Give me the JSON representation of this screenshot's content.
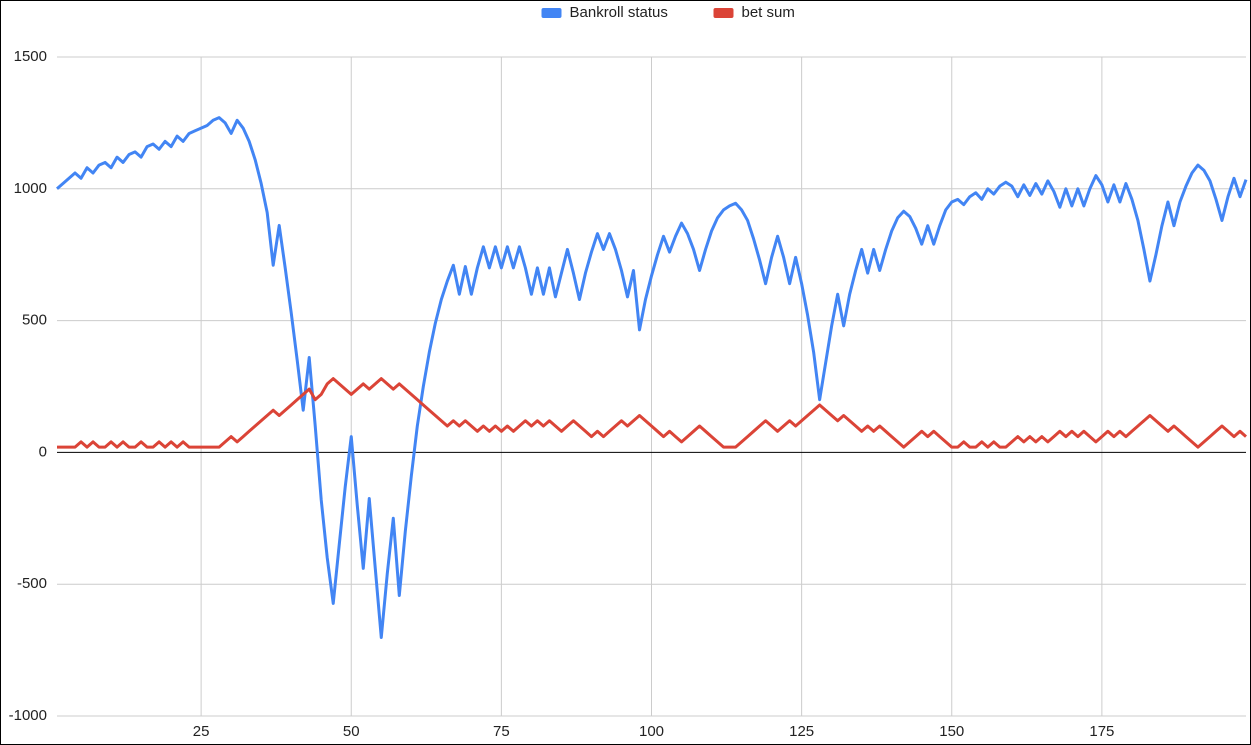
{
  "chart_data": {
    "type": "line",
    "x": [
      1,
      2,
      3,
      4,
      5,
      6,
      7,
      8,
      9,
      10,
      11,
      12,
      13,
      14,
      15,
      16,
      17,
      18,
      19,
      20,
      21,
      22,
      23,
      24,
      25,
      26,
      27,
      28,
      29,
      30,
      31,
      32,
      33,
      34,
      35,
      36,
      37,
      38,
      39,
      40,
      41,
      42,
      43,
      44,
      45,
      46,
      47,
      48,
      49,
      50,
      51,
      52,
      53,
      54,
      55,
      56,
      57,
      58,
      59,
      60,
      61,
      62,
      63,
      64,
      65,
      66,
      67,
      68,
      69,
      70,
      71,
      72,
      73,
      74,
      75,
      76,
      77,
      78,
      79,
      80,
      81,
      82,
      83,
      84,
      85,
      86,
      87,
      88,
      89,
      90,
      91,
      92,
      93,
      94,
      95,
      96,
      97,
      98,
      99,
      100,
      101,
      102,
      103,
      104,
      105,
      106,
      107,
      108,
      109,
      110,
      111,
      112,
      113,
      114,
      115,
      116,
      117,
      118,
      119,
      120,
      121,
      122,
      123,
      124,
      125,
      126,
      127,
      128,
      129,
      130,
      131,
      132,
      133,
      134,
      135,
      136,
      137,
      138,
      139,
      140,
      141,
      142,
      143,
      144,
      145,
      146,
      147,
      148,
      149,
      150,
      151,
      152,
      153,
      154,
      155,
      156,
      157,
      158,
      159,
      160,
      161,
      162,
      163,
      164,
      165,
      166,
      167,
      168,
      169,
      170,
      171,
      172,
      173,
      174,
      175,
      176,
      177,
      178,
      179,
      180,
      181,
      182,
      183,
      184,
      185,
      186,
      187,
      188,
      189,
      190,
      191,
      192,
      193,
      194,
      195,
      196,
      197,
      198,
      199
    ],
    "series": [
      {
        "name": "Bankroll status",
        "color": "#4285f4",
        "values": [
          1000,
          1020,
          1040,
          1060,
          1040,
          1080,
          1060,
          1090,
          1100,
          1080,
          1120,
          1100,
          1130,
          1140,
          1120,
          1160,
          1170,
          1150,
          1180,
          1160,
          1200,
          1180,
          1210,
          1220,
          1230,
          1240,
          1260,
          1270,
          1250,
          1210,
          1260,
          1230,
          1180,
          1110,
          1020,
          910,
          710,
          861,
          700,
          530,
          350,
          160,
          360,
          100,
          -180,
          -400,
          -573,
          -350,
          -130,
          60,
          -200,
          -440,
          -175,
          -440,
          -702,
          -460,
          -250,
          -543,
          -300,
          -90,
          100,
          250,
          380,
          490,
          580,
          650,
          710,
          600,
          705,
          600,
          700,
          780,
          700,
          780,
          700,
          780,
          700,
          780,
          700,
          600,
          700,
          600,
          700,
          590,
          680,
          770,
          680,
          580,
          680,
          760,
          830,
          770,
          830,
          770,
          690,
          590,
          690,
          465,
          580,
          670,
          750,
          820,
          760,
          820,
          870,
          830,
          770,
          690,
          770,
          840,
          890,
          920,
          935,
          945,
          920,
          880,
          810,
          730,
          640,
          740,
          820,
          740,
          640,
          740,
          640,
          520,
          380,
          200,
          340,
          480,
          600,
          480,
          600,
          690,
          770,
          680,
          770,
          690,
          770,
          840,
          890,
          915,
          895,
          850,
          790,
          860,
          790,
          860,
          920,
          950,
          960,
          940,
          970,
          985,
          960,
          1000,
          980,
          1010,
          1025,
          1010,
          970,
          1015,
          975,
          1020,
          980,
          1030,
          990,
          930,
          1000,
          935,
          1000,
          935,
          1000,
          1050,
          1015,
          950,
          1015,
          950,
          1020,
          960,
          880,
          770,
          650,
          750,
          860,
          950,
          860,
          950,
          1010,
          1060,
          1090,
          1070,
          1030,
          960,
          880,
          970,
          1040,
          970,
          1035
        ]
      },
      {
        "name": "bet sum",
        "color": "#db4437",
        "values": [
          20,
          20,
          20,
          20,
          40,
          20,
          40,
          20,
          20,
          40,
          20,
          40,
          20,
          20,
          40,
          20,
          20,
          40,
          20,
          40,
          20,
          40,
          20,
          20,
          20,
          20,
          20,
          20,
          40,
          60,
          40,
          60,
          80,
          100,
          120,
          140,
          160,
          140,
          160,
          180,
          200,
          220,
          240,
          200,
          220,
          260,
          280,
          260,
          240,
          220,
          240,
          260,
          240,
          260,
          280,
          260,
          240,
          260,
          240,
          220,
          200,
          180,
          160,
          140,
          120,
          100,
          120,
          100,
          120,
          100,
          80,
          100,
          80,
          100,
          80,
          100,
          80,
          100,
          120,
          100,
          120,
          100,
          120,
          100,
          80,
          100,
          120,
          100,
          80,
          60,
          80,
          60,
          80,
          100,
          120,
          100,
          120,
          140,
          120,
          100,
          80,
          60,
          80,
          60,
          40,
          60,
          80,
          100,
          80,
          60,
          40,
          20,
          20,
          20,
          40,
          60,
          80,
          100,
          120,
          100,
          80,
          100,
          120,
          100,
          120,
          140,
          160,
          180,
          160,
          140,
          120,
          140,
          120,
          100,
          80,
          100,
          80,
          100,
          80,
          60,
          40,
          20,
          40,
          60,
          80,
          60,
          80,
          60,
          40,
          20,
          20,
          40,
          20,
          20,
          40,
          20,
          40,
          20,
          20,
          40,
          60,
          40,
          60,
          40,
          60,
          40,
          60,
          80,
          60,
          80,
          60,
          80,
          60,
          40,
          60,
          80,
          60,
          80,
          60,
          80,
          100,
          120,
          140,
          120,
          100,
          80,
          100,
          80,
          60,
          40,
          20,
          40,
          60,
          80,
          100,
          80,
          60,
          80,
          60
        ]
      }
    ],
    "xlim": [
      1,
      199
    ],
    "xticks": [
      25,
      50,
      75,
      100,
      125,
      150,
      175
    ],
    "ylim": [
      -1000,
      1500
    ],
    "yticks": [
      -1000,
      -500,
      0,
      500,
      1000,
      1500
    ],
    "grid": true,
    "legend": "top"
  }
}
